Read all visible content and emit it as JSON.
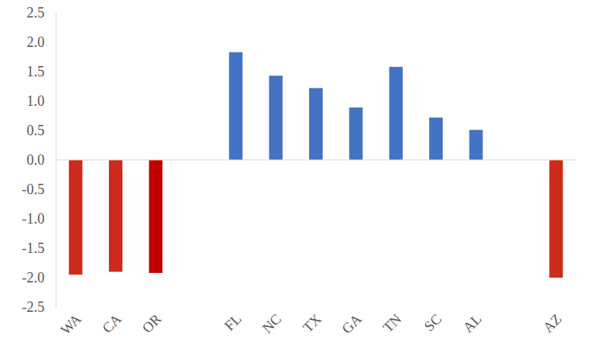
{
  "chart_data": {
    "type": "bar",
    "categories": [
      "WA",
      "CA",
      "OR",
      null,
      "FL",
      "NC",
      "TX",
      "GA",
      "TN",
      "SC",
      "AL",
      null,
      "AZ"
    ],
    "values": [
      -1.95,
      -1.9,
      -1.92,
      null,
      1.83,
      1.43,
      1.22,
      0.89,
      1.58,
      0.72,
      0.51,
      null,
      -2.0
    ],
    "colors": [
      "#cc2a1b",
      "#cc2a1b",
      "#c00000",
      null,
      "#4472c4",
      "#4472c4",
      "#4472c4",
      "#4472c4",
      "#4472c4",
      "#4472c4",
      "#4472c4",
      null,
      "#cc2a1b"
    ],
    "ylim": [
      -2.5,
      2.5
    ],
    "yticks": [
      -2.5,
      {
        "value": -2.0,
        "label": "-2.0"
      },
      -1.5,
      {
        "value": -1.0,
        "label": "-1.0"
      },
      -0.5,
      {
        "value": 0.0,
        "label": "0.0"
      },
      0.5,
      {
        "value": 1.0,
        "label": "1.0"
      },
      1.5,
      {
        "value": 2.0,
        "label": "2.0"
      },
      2.5
    ],
    "grid": false
  }
}
